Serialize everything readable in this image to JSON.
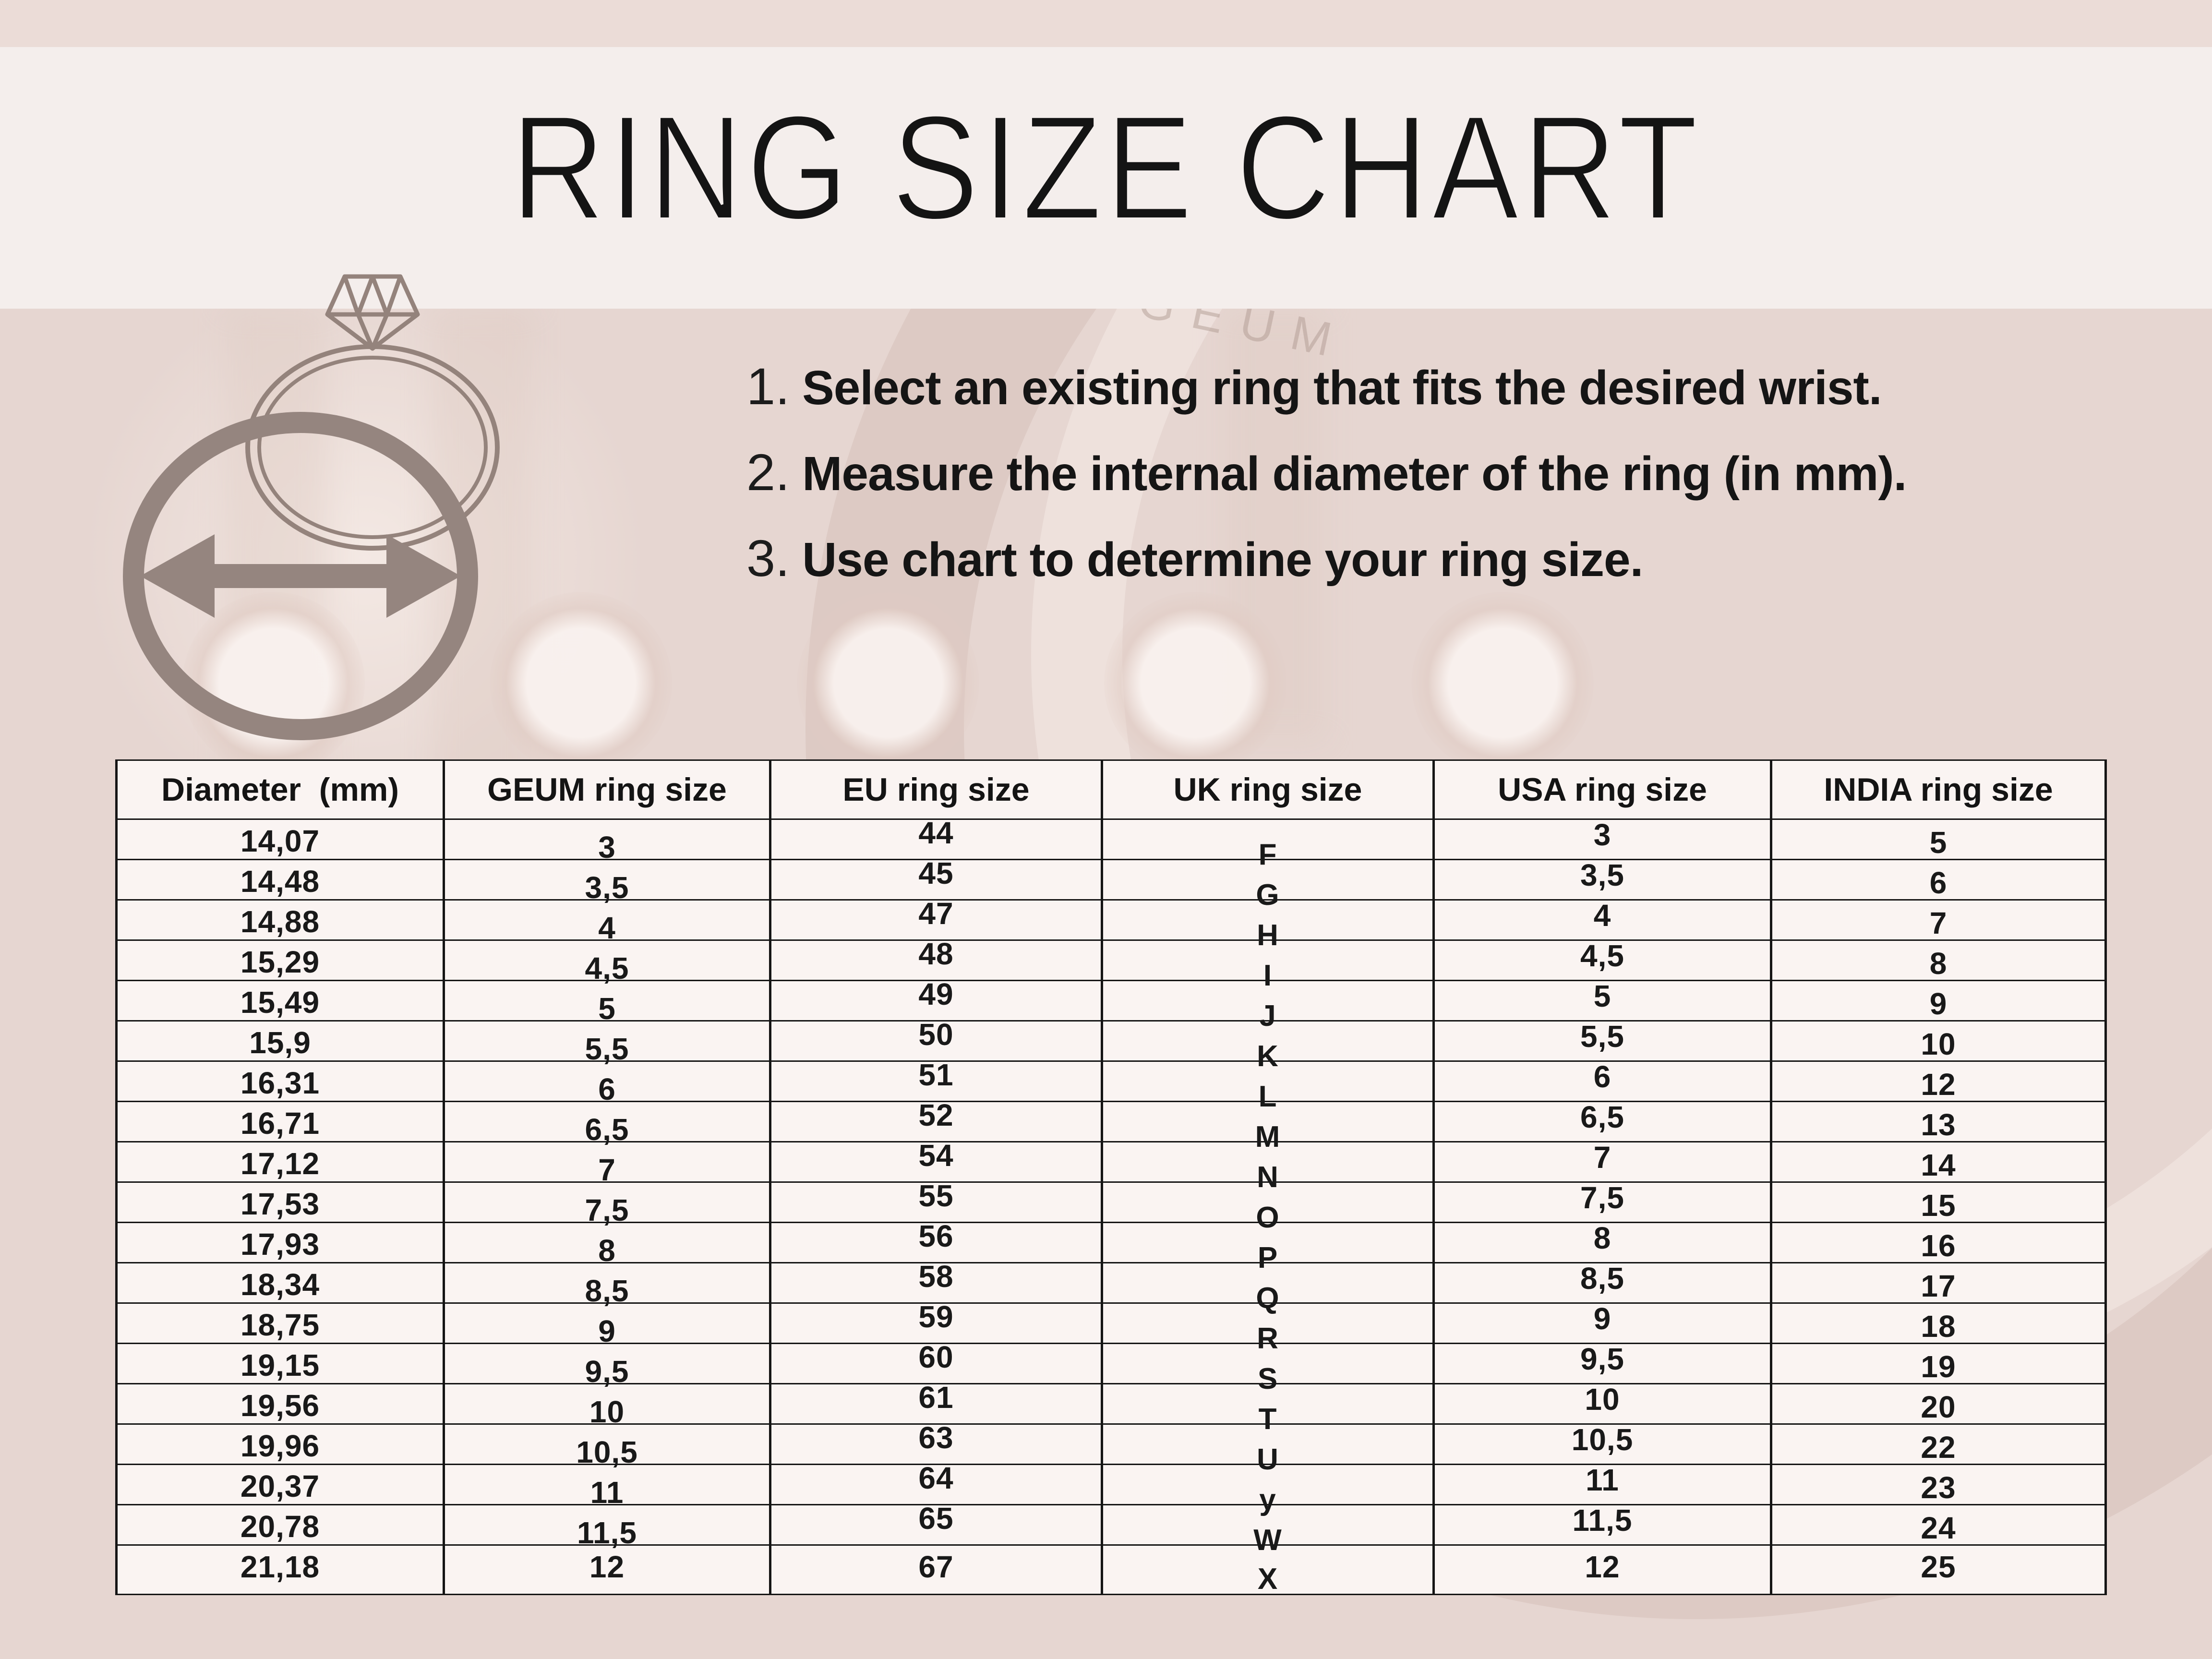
{
  "title": "RING SIZE CHART",
  "watermark": "GEUM",
  "instructions": [
    {
      "num": "1.",
      "text": "Select an existing ring that fits the desired wrist."
    },
    {
      "num": "2.",
      "text": "Measure the internal diameter of the ring (in mm)."
    },
    {
      "num": "3.",
      "text": "Use chart to determine your ring size."
    }
  ],
  "table": {
    "headers": [
      "Diameter  (mm)",
      "GEUM ring size",
      "EU ring size",
      "UK ring size",
      "USA ring size",
      "INDIA ring size"
    ],
    "column_keys": [
      "diameter",
      "geum",
      "eu",
      "uk",
      "usa",
      "india"
    ],
    "rows": [
      [
        "14,07",
        "3",
        "44",
        "F",
        "3",
        "5"
      ],
      [
        "14,48",
        "3,5",
        "45",
        "G",
        "3,5",
        "6"
      ],
      [
        "14,88",
        "4",
        "47",
        "H",
        "4",
        "7"
      ],
      [
        "15,29",
        "4,5",
        "48",
        "I",
        "4,5",
        "8"
      ],
      [
        "15,49",
        "5",
        "49",
        "J",
        "5",
        "9"
      ],
      [
        "15,9",
        "5,5",
        "50",
        "K",
        "5,5",
        "10"
      ],
      [
        "16,31",
        "6",
        "51",
        "L",
        "6",
        "12"
      ],
      [
        "16,71",
        "6,5",
        "52",
        "M",
        "6,5",
        "13"
      ],
      [
        "17,12",
        "7",
        "54",
        "N",
        "7",
        "14"
      ],
      [
        "17,53",
        "7,5",
        "55",
        "O",
        "7,5",
        "15"
      ],
      [
        "17,93",
        "8",
        "56",
        "P",
        "8",
        "16"
      ],
      [
        "18,34",
        "8,5",
        "58",
        "Q",
        "8,5",
        "17"
      ],
      [
        "18,75",
        "9",
        "59",
        "R",
        "9",
        "18"
      ],
      [
        "19,15",
        "9,5",
        "60",
        "S",
        "9,5",
        "19"
      ],
      [
        "19,56",
        "10",
        "61",
        "T",
        "10",
        "20"
      ],
      [
        "19,96",
        "10,5",
        "63",
        "U",
        "10,5",
        "22"
      ],
      [
        "20,37",
        "11",
        "64",
        "y",
        "11",
        "23"
      ],
      [
        "20,78",
        "11,5",
        "65",
        "W",
        "11,5",
        "24"
      ],
      [
        "21,18",
        "12",
        "67",
        "X",
        "12",
        "25"
      ]
    ]
  },
  "colors": {
    "page_background": "#e6d7d2",
    "top_strip": "#ebdcd7",
    "banner": "#f4eeec",
    "table_background": "#faf4f2",
    "table_line": "#151515",
    "text": "#151515",
    "icon": "#95857f"
  }
}
